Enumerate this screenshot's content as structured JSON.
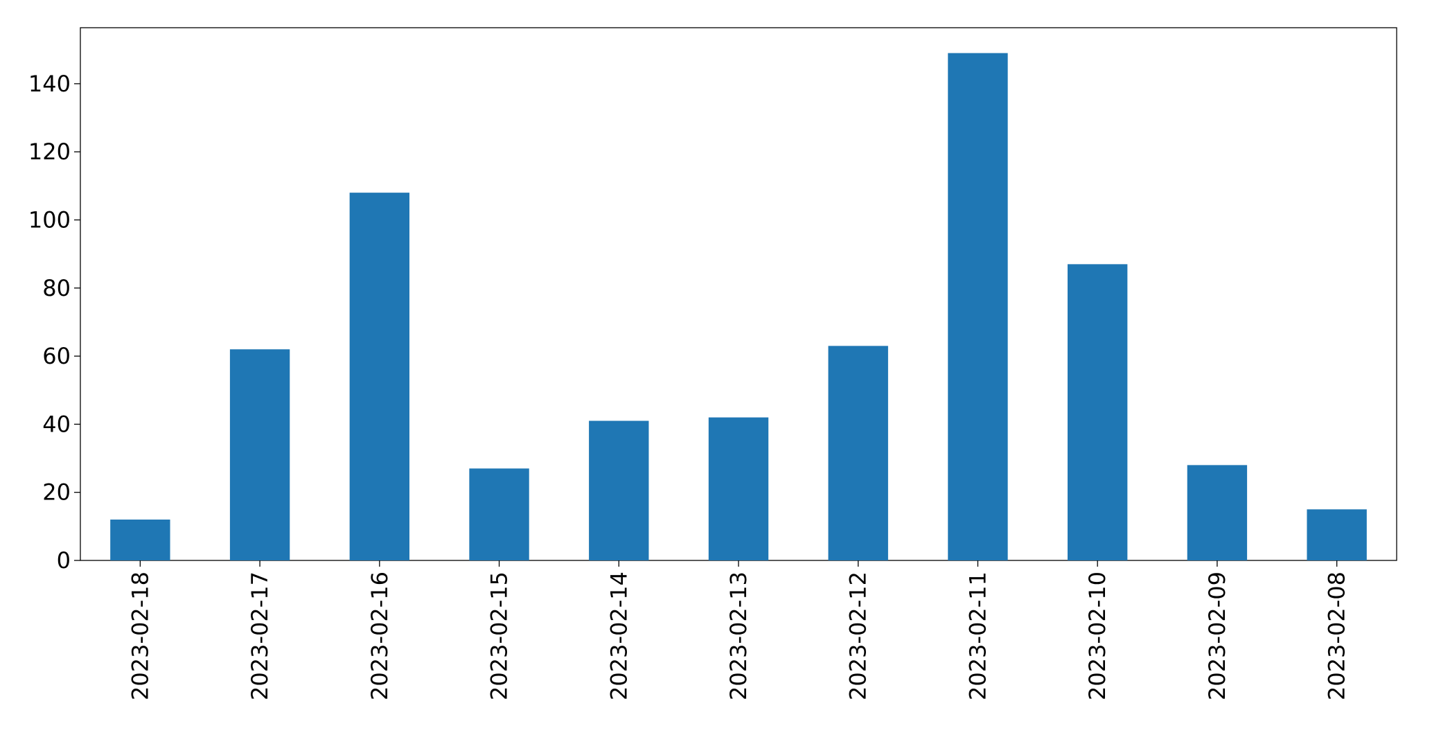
{
  "chart_data": {
    "type": "bar",
    "categories": [
      "2023-02-18",
      "2023-02-17",
      "2023-02-16",
      "2023-02-15",
      "2023-02-14",
      "2023-02-13",
      "2023-02-12",
      "2023-02-11",
      "2023-02-10",
      "2023-02-09",
      "2023-02-08"
    ],
    "values": [
      12,
      62,
      108,
      27,
      41,
      42,
      63,
      149,
      87,
      28,
      15
    ],
    "color": "#1f77b4",
    "ylim": [
      0,
      156.45
    ],
    "yticks": [
      0,
      20,
      40,
      60,
      80,
      100,
      120,
      140
    ],
    "grid": false
  }
}
